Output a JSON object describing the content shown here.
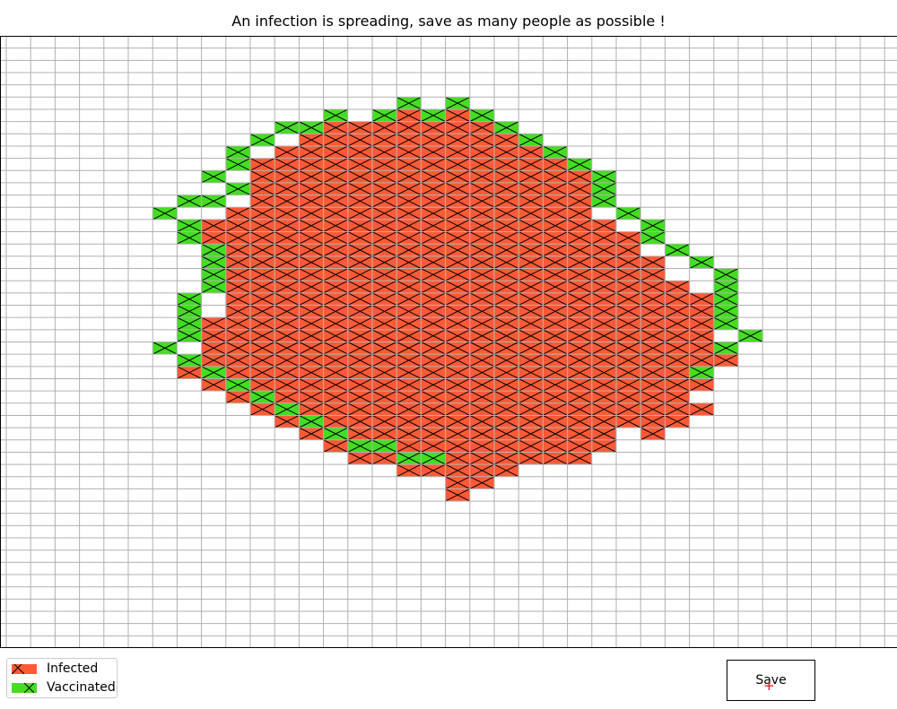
{
  "title": "An infection is spreading, save as many people as possible !",
  "legend": {
    "infected_label": "Infected",
    "vaccinated_label": "Vaccinated"
  },
  "save_button": {
    "label": "Save",
    "cursor_glyph": "+"
  },
  "colors": {
    "infected": "#ff5a36",
    "vaccinated": "#44dd22",
    "grid": "#b0b0b0",
    "hatch": "#000000",
    "cursor": "#e01010"
  },
  "grid": {
    "cols": 37,
    "rows": 50,
    "infected_rows": {
      "6": [
        16,
        18
      ],
      "7": [
        13,
        14,
        15,
        16,
        17,
        18,
        19
      ],
      "8": [
        12,
        13,
        14,
        15,
        16,
        17,
        18,
        19,
        20
      ],
      "9": [
        11,
        12,
        13,
        14,
        15,
        16,
        17,
        18,
        19,
        20,
        21
      ],
      "10": [
        10,
        11,
        12,
        13,
        14,
        15,
        16,
        17,
        18,
        19,
        20,
        21,
        22
      ],
      "11": [
        10,
        11,
        12,
        13,
        14,
        15,
        16,
        17,
        18,
        19,
        20,
        21,
        22,
        23
      ],
      "12": [
        9,
        10,
        11,
        12,
        13,
        14,
        15,
        16,
        17,
        18,
        19,
        20,
        21,
        22,
        23
      ],
      "13": [
        10,
        11,
        12,
        13,
        14,
        15,
        16,
        17,
        18,
        19,
        20,
        21,
        22,
        23
      ],
      "14": [
        9,
        10,
        11,
        12,
        13,
        14,
        15,
        16,
        17,
        18,
        19,
        20,
        21,
        22,
        23
      ],
      "15": [
        7,
        8,
        9,
        10,
        11,
        12,
        13,
        14,
        15,
        16,
        17,
        18,
        19,
        20,
        21,
        22,
        23,
        24
      ],
      "16": [
        8,
        9,
        10,
        11,
        12,
        13,
        14,
        15,
        16,
        17,
        18,
        19,
        20,
        21,
        22,
        23,
        24,
        25
      ],
      "17": [
        8,
        9,
        10,
        11,
        12,
        13,
        14,
        15,
        16,
        17,
        18,
        19,
        20,
        21,
        22,
        23,
        24,
        25
      ],
      "18": [
        8,
        9,
        10,
        11,
        12,
        13,
        14,
        15,
        16,
        17,
        18,
        19,
        20,
        21,
        22,
        23,
        24,
        25,
        26
      ],
      "19": [
        9,
        10,
        11,
        12,
        13,
        14,
        15,
        16,
        17,
        18,
        19,
        20,
        21,
        22,
        23,
        24,
        25,
        26
      ],
      "20": [
        9,
        10,
        11,
        12,
        13,
        14,
        15,
        16,
        17,
        18,
        19,
        20,
        21,
        22,
        23,
        24,
        25,
        26,
        27
      ],
      "21": [
        9,
        10,
        11,
        12,
        13,
        14,
        15,
        16,
        17,
        18,
        19,
        20,
        21,
        22,
        23,
        24,
        25,
        26,
        27,
        28
      ],
      "22": [
        9,
        10,
        11,
        12,
        13,
        14,
        15,
        16,
        17,
        18,
        19,
        20,
        21,
        22,
        23,
        24,
        25,
        26,
        27,
        28
      ],
      "23": [
        8,
        9,
        10,
        11,
        12,
        13,
        14,
        15,
        16,
        17,
        18,
        19,
        20,
        21,
        22,
        23,
        24,
        25,
        26,
        27,
        28
      ],
      "24": [
        8,
        9,
        10,
        11,
        12,
        13,
        14,
        15,
        16,
        17,
        18,
        19,
        20,
        21,
        22,
        23,
        24,
        25,
        26,
        27,
        28
      ],
      "25": [
        8,
        9,
        10,
        11,
        12,
        13,
        14,
        15,
        16,
        17,
        18,
        19,
        20,
        21,
        22,
        23,
        24,
        25,
        26,
        27,
        28
      ],
      "26": [
        8,
        9,
        10,
        11,
        12,
        13,
        14,
        15,
        16,
        17,
        18,
        19,
        20,
        21,
        22,
        23,
        24,
        25,
        26,
        27,
        28,
        29
      ],
      "27": [
        7,
        8,
        9,
        10,
        11,
        12,
        13,
        14,
        15,
        16,
        17,
        18,
        19,
        20,
        21,
        22,
        23,
        24,
        25,
        26,
        27,
        28
      ],
      "28": [
        8,
        9,
        10,
        11,
        12,
        13,
        14,
        15,
        16,
        17,
        18,
        19,
        20,
        21,
        22,
        23,
        24,
        25,
        26,
        27,
        28
      ],
      "29": [
        9,
        10,
        11,
        12,
        13,
        14,
        15,
        16,
        17,
        18,
        19,
        20,
        21,
        22,
        23,
        24,
        25,
        26,
        27
      ],
      "30": [
        10,
        11,
        12,
        13,
        14,
        15,
        16,
        17,
        18,
        19,
        20,
        21,
        22,
        23,
        24,
        25,
        26,
        27,
        28
      ],
      "31": [
        11,
        12,
        13,
        14,
        15,
        16,
        17,
        18,
        19,
        20,
        21,
        22,
        23,
        24,
        25,
        26,
        27
      ],
      "32": [
        12,
        13,
        14,
        15,
        16,
        17,
        18,
        19,
        20,
        21,
        22,
        23,
        24,
        26
      ],
      "33": [
        13,
        14,
        15,
        16,
        17,
        18,
        19,
        20,
        21,
        22,
        23,
        24
      ],
      "34": [
        14,
        15,
        16,
        17,
        18,
        19,
        20,
        21,
        22,
        23
      ],
      "35": [
        16,
        17,
        18,
        19,
        20
      ],
      "36": [
        18,
        19
      ],
      "37": [
        18
      ]
    },
    "vaccinated_rows": {
      "5": [
        16,
        18
      ],
      "6": [
        13,
        15,
        17,
        19
      ],
      "7": [
        11,
        12,
        20
      ],
      "8": [
        10,
        21
      ],
      "9": [
        9,
        22
      ],
      "10": [
        9,
        23
      ],
      "11": [
        8,
        24
      ],
      "12": [
        9,
        24
      ],
      "13": [
        7,
        8,
        24
      ],
      "14": [
        6,
        25
      ],
      "15": [
        7,
        26
      ],
      "16": [
        7,
        26
      ],
      "17": [
        8,
        27
      ],
      "18": [
        8,
        28
      ],
      "19": [
        8,
        29
      ],
      "20": [
        8,
        29
      ],
      "21": [
        7,
        29
      ],
      "22": [
        7,
        29
      ],
      "23": [
        7,
        29
      ],
      "24": [
        7,
        30
      ],
      "25": [
        6,
        29
      ],
      "26": [
        7
      ],
      "27": [
        8,
        28
      ],
      "28": [
        9
      ],
      "29": [
        10
      ],
      "30": [
        11
      ],
      "31": [
        12
      ],
      "32": [
        13
      ],
      "33": [
        14,
        15
      ],
      "34": [
        16,
        17
      ]
    }
  }
}
